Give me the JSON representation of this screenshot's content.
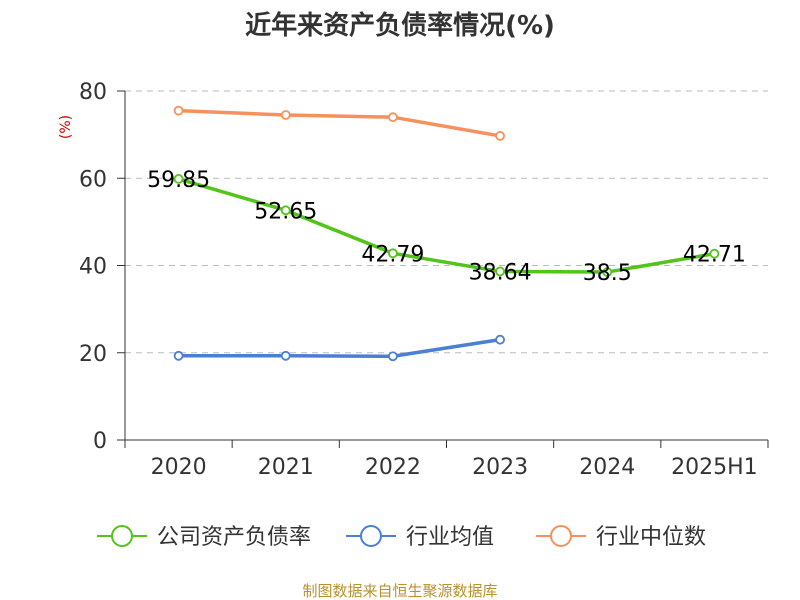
{
  "chart_data": {
    "type": "line",
    "title": "近年来资产负债率情况(%)",
    "ylabel": "(%)",
    "xlabel": "",
    "categories": [
      "2020",
      "2021",
      "2022",
      "2023",
      "2024",
      "2025H1"
    ],
    "ylim": [
      0,
      80
    ],
    "yticks": [
      0,
      20,
      40,
      60,
      80
    ],
    "grid": true,
    "legend_position": "bottom",
    "series": [
      {
        "name": "公司资产负债率",
        "color": "#52c41a",
        "values": [
          59.85,
          52.65,
          42.79,
          38.64,
          38.5,
          42.71
        ],
        "labels": [
          "59.85",
          "52.65",
          "42.79",
          "38.64",
          "38.5",
          "42.71"
        ]
      },
      {
        "name": "行业均值",
        "color": "#4a7fd4",
        "values": [
          19.3,
          19.3,
          19.2,
          23.0,
          null,
          null
        ]
      },
      {
        "name": "行业中位数",
        "color": "#f5915c",
        "values": [
          75.5,
          74.5,
          74.0,
          69.7,
          null,
          null
        ]
      }
    ]
  },
  "source": "制图数据来自恒生聚源数据库"
}
